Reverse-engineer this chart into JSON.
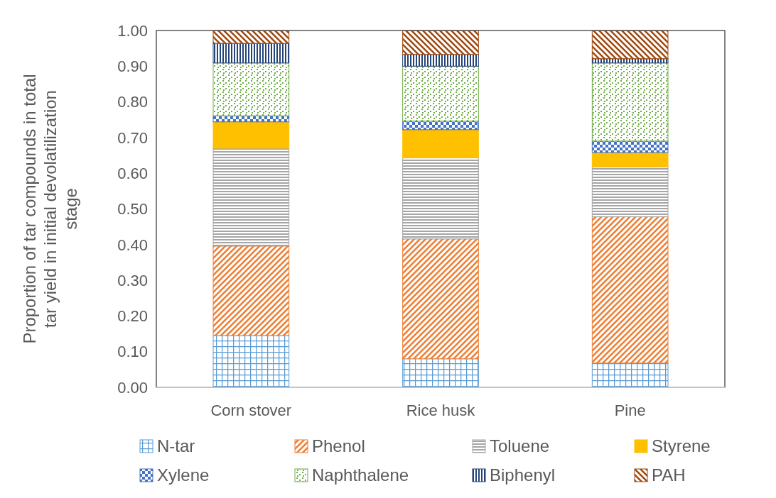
{
  "chart_data": {
    "type": "bar",
    "stacked": true,
    "ylabel": "Proportion of tar compounds in total tar yield in initial devolatilization stage",
    "categories": [
      "Corn stover",
      "Rice husk",
      "Pine"
    ],
    "series": [
      {
        "name": "N-tar",
        "color": "#5b9bd5",
        "values": [
          0.145,
          0.08,
          0.068
        ]
      },
      {
        "name": "Phenol",
        "color": "#ed7d31",
        "values": [
          0.251,
          0.336,
          0.41
        ]
      },
      {
        "name": "Toluene",
        "color": "#a5a5a5",
        "values": [
          0.274,
          0.227,
          0.14
        ]
      },
      {
        "name": "Styrene",
        "color": "#ffc000",
        "values": [
          0.074,
          0.079,
          0.04
        ]
      },
      {
        "name": "Xylene",
        "color": "#4472c4",
        "values": [
          0.017,
          0.024,
          0.032
        ]
      },
      {
        "name": "Naphthalene",
        "color": "#70ad47",
        "values": [
          0.148,
          0.154,
          0.219
        ]
      },
      {
        "name": "Biphenyl",
        "color": "#264478",
        "values": [
          0.055,
          0.033,
          0.012
        ]
      },
      {
        "name": "PAH",
        "color": "#9e480e",
        "values": [
          0.036,
          0.067,
          0.079
        ]
      }
    ],
    "ylim": [
      0,
      1
    ],
    "yticks": [
      {
        "value": 0,
        "label": "0.00"
      },
      {
        "value": 0.1,
        "label": "0.10"
      },
      {
        "value": 0.2,
        "label": "0.20"
      },
      {
        "value": 0.3,
        "label": "0.30"
      },
      {
        "value": 0.4,
        "label": "0.40"
      },
      {
        "value": 0.5,
        "label": "0.50"
      },
      {
        "value": 0.6,
        "label": "0.60"
      },
      {
        "value": 0.7,
        "label": "0.70"
      },
      {
        "value": 0.8,
        "label": "0.80"
      },
      {
        "value": 0.9,
        "label": "0.90"
      },
      {
        "value": 1,
        "label": "1.00"
      }
    ],
    "grid": false,
    "legend": "bottom"
  }
}
